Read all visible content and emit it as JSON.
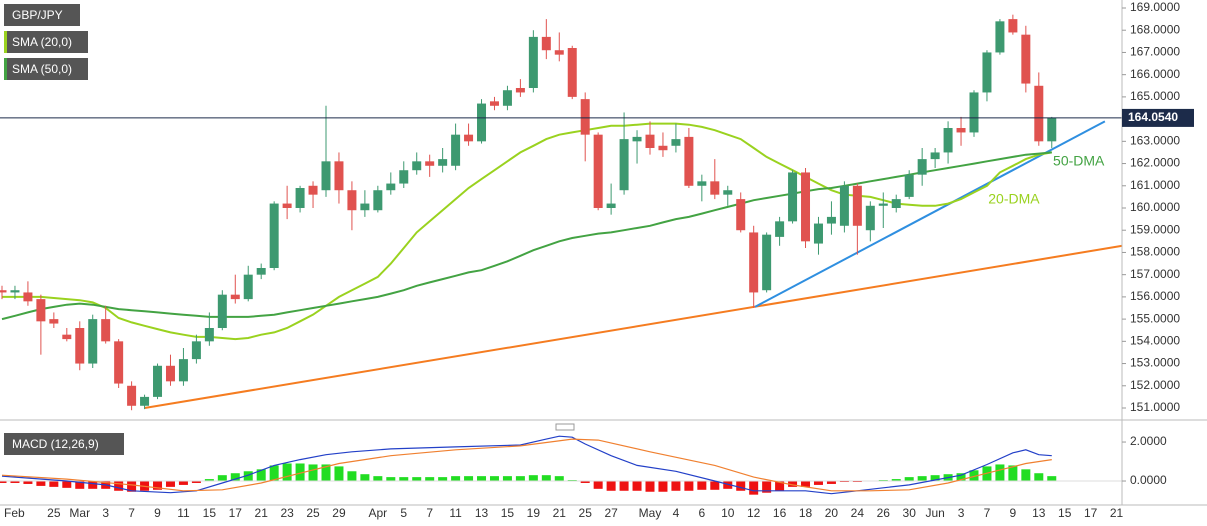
{
  "chart_data": {
    "type": "candlestick",
    "symbol": "GBP/JPY",
    "categories": [
      "Feb",
      null,
      null,
      null,
      "25",
      null,
      "Mar",
      null,
      "3",
      null,
      "7",
      null,
      "9",
      null,
      "11",
      null,
      "15",
      null,
      "17",
      null,
      "21",
      null,
      "23",
      null,
      "25",
      null,
      "29",
      null,
      null,
      "Apr",
      null,
      "5",
      null,
      "7",
      null,
      "11",
      null,
      "13",
      null,
      "15",
      null,
      "19",
      null,
      "21",
      null,
      "25",
      null,
      "27",
      null,
      null,
      "May",
      null,
      "4",
      null,
      "6",
      null,
      "10",
      null,
      "12",
      null,
      "16",
      null,
      "18",
      null,
      "20",
      null,
      "24",
      null,
      "26",
      null,
      "30",
      null,
      "Jun",
      null,
      "3",
      null,
      "7",
      null,
      "9",
      null,
      "13",
      null,
      "15",
      null,
      "17",
      null,
      "21"
    ],
    "open": [
      156.3,
      156.2,
      156.2,
      155.9,
      155.0,
      154.3,
      154.6,
      153.0,
      155.0,
      154.0,
      152.0,
      151.1,
      151.5,
      152.9,
      152.2,
      153.2,
      154.0,
      154.6,
      156.1,
      155.9,
      157.0,
      157.3,
      160.2,
      160.0,
      161.0,
      160.8,
      162.1,
      160.8,
      159.9,
      159.9,
      160.8,
      161.1,
      161.7,
      162.1,
      161.9,
      161.9,
      163.3,
      163.0,
      164.8,
      164.6,
      165.4,
      165.4,
      167.7,
      167.1,
      167.2,
      164.9,
      163.3,
      160.0,
      160.8,
      163.0,
      163.3,
      162.8,
      162.8,
      163.2,
      161.0,
      161.2,
      160.6,
      160.4,
      158.9,
      156.3,
      158.7,
      159.4,
      161.6,
      158.4,
      159.3,
      159.2,
      161.0,
      159.0,
      160.1,
      160.0,
      160.5,
      161.5,
      162.2,
      162.5,
      163.6,
      163.4,
      165.2,
      167.0,
      168.5,
      167.8,
      165.5,
      163.0,
      null,
      null,
      null,
      null,
      null
    ],
    "high": [
      156.5,
      156.5,
      156.7,
      156.1,
      155.3,
      154.6,
      154.9,
      155.2,
      155.6,
      154.1,
      152.2,
      151.6,
      153.0,
      153.4,
      153.7,
      154.3,
      155.3,
      156.3,
      157.0,
      157.4,
      157.5,
      160.3,
      161.0,
      161.0,
      161.2,
      164.6,
      162.5,
      161.2,
      160.8,
      161.0,
      161.6,
      162.1,
      162.5,
      162.4,
      162.7,
      163.8,
      163.8,
      164.9,
      165.0,
      165.5,
      165.8,
      168.0,
      168.5,
      167.9,
      167.3,
      165.2,
      163.4,
      161.1,
      164.3,
      163.5,
      163.9,
      163.4,
      163.8,
      163.6,
      161.5,
      162.2,
      161.0,
      160.7,
      159.2,
      158.9,
      159.6,
      161.7,
      161.8,
      159.6,
      160.3,
      161.2,
      161.1,
      160.3,
      160.7,
      160.6,
      161.7,
      162.7,
      162.7,
      163.9,
      164.1,
      165.3,
      167.1,
      168.5,
      168.7,
      168.2,
      166.1,
      164.1,
      null,
      null,
      null,
      null,
      null
    ],
    "low": [
      155.9,
      155.9,
      155.6,
      153.4,
      154.6,
      154.0,
      152.7,
      152.8,
      153.9,
      151.9,
      150.9,
      150.95,
      151.4,
      152.0,
      152.0,
      153.0,
      153.8,
      154.5,
      155.7,
      155.8,
      156.8,
      157.2,
      159.5,
      159.8,
      160.0,
      160.5,
      160.2,
      159.0,
      159.6,
      159.8,
      160.6,
      160.9,
      161.5,
      161.4,
      161.6,
      161.7,
      162.8,
      162.9,
      164.4,
      164.4,
      165.0,
      165.2,
      166.7,
      166.6,
      164.9,
      162.1,
      159.9,
      159.7,
      160.6,
      162.0,
      162.4,
      162.3,
      162.5,
      160.9,
      160.3,
      160.4,
      160.1,
      158.9,
      155.5,
      156.2,
      158.3,
      159.3,
      158.2,
      157.9,
      158.8,
      158.9,
      157.9,
      158.5,
      159.1,
      159.8,
      160.4,
      161.0,
      161.8,
      162.0,
      162.8,
      163.2,
      164.8,
      166.9,
      167.8,
      165.2,
      162.8,
      162.7,
      null,
      null,
      null,
      null,
      null
    ],
    "close": [
      156.2,
      156.3,
      155.8,
      154.9,
      154.8,
      154.1,
      153.0,
      155.0,
      154.0,
      152.1,
      151.1,
      151.5,
      152.9,
      152.2,
      153.2,
      154.0,
      154.6,
      156.1,
      155.9,
      157.0,
      157.3,
      160.2,
      160.0,
      160.9,
      160.6,
      162.1,
      160.8,
      159.9,
      160.2,
      160.8,
      161.1,
      161.7,
      162.1,
      161.9,
      162.2,
      163.3,
      163.0,
      164.7,
      164.6,
      165.3,
      165.2,
      167.7,
      167.1,
      166.9,
      165.0,
      163.3,
      160.0,
      160.2,
      163.1,
      163.2,
      162.7,
      162.6,
      163.1,
      161.0,
      161.2,
      160.6,
      160.8,
      159.0,
      156.2,
      158.8,
      159.4,
      161.6,
      158.5,
      159.3,
      159.6,
      161.0,
      159.2,
      160.1,
      160.2,
      160.4,
      161.5,
      162.2,
      162.5,
      163.6,
      163.4,
      165.2,
      167.0,
      168.4,
      167.9,
      165.6,
      163.0,
      164.05,
      null,
      null,
      null,
      null,
      null
    ],
    "up_color": "#3d9970",
    "down_color": "#e0524f",
    "ylim": [
      150.55,
      169.36
    ],
    "yticks": [
      {
        "value": 151,
        "label": "151.0000"
      },
      {
        "value": 152,
        "label": "152.0000"
      },
      {
        "value": 153,
        "label": "153.0000"
      },
      {
        "value": 154,
        "label": "154.0000"
      },
      {
        "value": 155,
        "label": "155.0000"
      },
      {
        "value": 156,
        "label": "156.0000"
      },
      {
        "value": 157,
        "label": "157.0000"
      },
      {
        "value": 158,
        "label": "158.0000"
      },
      {
        "value": 159,
        "label": "159.0000"
      },
      {
        "value": 160,
        "label": "160.0000"
      },
      {
        "value": 161,
        "label": "161.0000"
      },
      {
        "value": 162,
        "label": "162.0000"
      },
      {
        "value": 163,
        "label": "163.0000"
      },
      {
        "value": 164,
        "label": "164.0000"
      },
      {
        "value": 165,
        "label": "165.0000"
      },
      {
        "value": 166,
        "label": "166.0000"
      },
      {
        "value": 167,
        "label": "167.0000"
      },
      {
        "value": 168,
        "label": "168.0000"
      },
      {
        "value": 169,
        "label": "169.0000"
      }
    ],
    "series": [
      {
        "name": "SMA (20,0)",
        "color": "#9ad21f",
        "values": [
          156.0,
          156.0,
          156.0,
          156.0,
          155.95,
          155.9,
          155.85,
          155.75,
          155.5,
          155.05,
          154.85,
          154.7,
          154.55,
          154.4,
          154.3,
          154.2,
          154.2,
          154.15,
          154.1,
          154.15,
          154.3,
          154.4,
          154.6,
          154.9,
          155.2,
          155.6,
          156.0,
          156.3,
          156.6,
          156.9,
          157.5,
          158.2,
          158.9,
          159.4,
          159.9,
          160.4,
          160.9,
          161.3,
          161.7,
          162.1,
          162.5,
          162.8,
          163.1,
          163.3,
          163.4,
          163.5,
          163.6,
          163.7,
          163.7,
          163.75,
          163.8,
          163.8,
          163.8,
          163.75,
          163.65,
          163.5,
          163.3,
          163.1,
          162.7,
          162.3,
          162.0,
          161.7,
          161.4,
          161.1,
          160.8,
          160.6,
          160.55,
          160.5,
          160.35,
          160.2,
          160.15,
          160.1,
          160.1,
          160.2,
          160.4,
          160.7,
          161.0,
          161.6,
          161.9,
          162.2,
          162.4,
          162.5,
          null,
          null,
          null,
          null,
          null
        ]
      },
      {
        "name": "SMA (50,0)",
        "color": "#43a343",
        "values": [
          155.0,
          155.15,
          155.3,
          155.45,
          155.55,
          155.65,
          155.7,
          155.65,
          155.55,
          155.45,
          155.4,
          155.35,
          155.3,
          155.25,
          155.2,
          155.15,
          155.1,
          155.1,
          155.1,
          155.1,
          155.15,
          155.2,
          155.3,
          155.4,
          155.5,
          155.6,
          155.7,
          155.8,
          155.9,
          156.0,
          156.15,
          156.3,
          156.5,
          156.65,
          156.8,
          156.95,
          157.1,
          157.2,
          157.4,
          157.6,
          157.85,
          158.1,
          158.3,
          158.5,
          158.65,
          158.75,
          158.85,
          158.9,
          159.0,
          159.1,
          159.2,
          159.35,
          159.5,
          159.6,
          159.75,
          159.9,
          160.05,
          160.2,
          160.35,
          160.45,
          160.55,
          160.65,
          160.75,
          160.85,
          160.9,
          161.0,
          161.1,
          161.2,
          161.3,
          161.4,
          161.5,
          161.6,
          161.7,
          161.8,
          161.9,
          162.0,
          162.1,
          162.2,
          162.3,
          162.4,
          162.45,
          162.5,
          null,
          null,
          null,
          null,
          null
        ]
      }
    ],
    "trendlines": [
      {
        "color": "#f57c20",
        "x": [
          11,
          86.45
        ],
        "values": [
          151.0,
          158.3
        ]
      },
      {
        "color": "#2f8fe0",
        "x": [
          58.1,
          85.1
        ],
        "values": [
          155.55,
          163.9
        ]
      }
    ],
    "last_price": {
      "value": 164.054,
      "label": "164.0540",
      "color": "#1c2b4a"
    },
    "annotations": [
      {
        "text": "50-DMA",
        "color": "#43a343",
        "x": 81.1,
        "value": 162.07
      },
      {
        "text": "20-DMA",
        "color": "#9ad21f",
        "x": 76.1,
        "value": 160.36
      }
    ],
    "macd": {
      "title": "MACD (12,26,9)",
      "ylim": [
        -1.23,
        2.72
      ],
      "yticks": [
        {
          "value": 2,
          "label": "2.0000"
        },
        {
          "value": 0,
          "label": "0.0000"
        }
      ],
      "histogram": {
        "up_color": "#22dd22",
        "down_color": "#ee1111",
        "values": [
          -0.1,
          -0.1,
          -0.15,
          -0.25,
          -0.3,
          -0.35,
          -0.4,
          -0.4,
          -0.4,
          -0.5,
          -0.55,
          -0.5,
          -0.45,
          -0.3,
          -0.2,
          -0.1,
          0.1,
          0.3,
          0.4,
          0.5,
          0.6,
          0.8,
          0.9,
          0.9,
          0.85,
          0.85,
          0.75,
          0.5,
          0.35,
          0.25,
          0.2,
          0.2,
          0.2,
          0.2,
          0.2,
          0.25,
          0.25,
          0.25,
          0.25,
          0.25,
          0.25,
          0.3,
          0.3,
          0.25,
          0.05,
          -0.1,
          -0.4,
          -0.5,
          -0.5,
          -0.5,
          -0.55,
          -0.55,
          -0.5,
          -0.5,
          -0.45,
          -0.45,
          -0.4,
          -0.5,
          -0.7,
          -0.6,
          -0.5,
          -0.3,
          -0.3,
          -0.2,
          -0.15,
          -0.05,
          -0.05,
          0.02,
          0.05,
          0.1,
          0.2,
          0.25,
          0.3,
          0.35,
          0.4,
          0.55,
          0.75,
          0.85,
          0.8,
          0.6,
          0.4,
          0.25,
          null,
          null,
          null,
          null,
          null
        ]
      },
      "lines": [
        {
          "color": "#2340c8",
          "x": [
            0,
            5,
            8,
            10,
            13,
            15,
            17,
            19,
            21,
            23,
            25,
            27,
            30,
            35,
            40,
            42,
            43,
            44,
            45,
            47,
            49,
            52,
            55,
            58,
            60,
            62,
            64,
            66,
            68,
            70,
            72,
            74,
            76,
            78,
            79,
            80,
            81
          ],
          "values": [
            0.25,
            0.0,
            -0.2,
            -0.5,
            -0.6,
            -0.5,
            -0.1,
            0.3,
            0.8,
            1.1,
            1.35,
            1.5,
            1.65,
            1.75,
            1.85,
            2.15,
            2.3,
            2.25,
            1.9,
            1.3,
            0.8,
            0.5,
            0.0,
            -0.5,
            -0.5,
            -0.5,
            -0.65,
            -0.5,
            -0.35,
            -0.2,
            0.05,
            0.3,
            0.85,
            1.45,
            1.6,
            1.35,
            1.3
          ]
        },
        {
          "color": "#f08030",
          "x": [
            0,
            5,
            10,
            14,
            17,
            20,
            23,
            26,
            30,
            35,
            40,
            44,
            46,
            50,
            55,
            58,
            61,
            64,
            67,
            70,
            73,
            76,
            79,
            81
          ],
          "values": [
            0.3,
            0.1,
            -0.2,
            -0.5,
            -0.45,
            -0.1,
            0.4,
            0.9,
            1.3,
            1.6,
            1.8,
            2.15,
            2.1,
            1.5,
            0.8,
            0.2,
            -0.2,
            -0.5,
            -0.5,
            -0.45,
            -0.1,
            0.4,
            0.9,
            1.1
          ]
        }
      ]
    }
  }
}
